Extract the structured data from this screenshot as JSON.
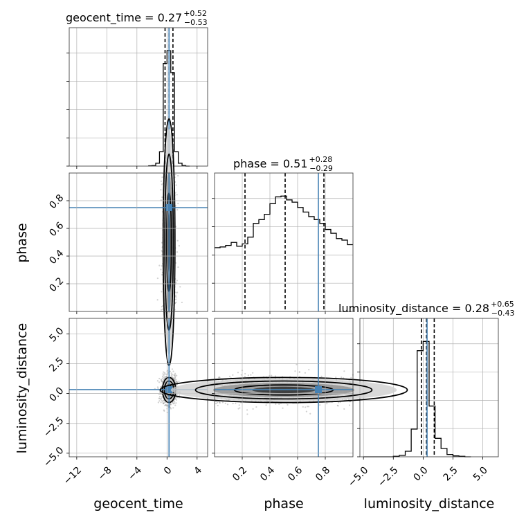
{
  "colors": {
    "truth": "#4682b4",
    "hist": "#000000",
    "grid": "#b0b0b0",
    "points": "#9a9a9a"
  },
  "chart_data": {
    "type": "corner",
    "parameters": [
      "geocent_time",
      "phase",
      "luminosity_distance"
    ],
    "titles": [
      {
        "param": "geocent_time",
        "text": "geocent_time = 0.27",
        "plus": "+0.52",
        "minus": "−0.53",
        "median": 0.27
      },
      {
        "param": "phase",
        "text": "phase = 0.51",
        "plus": "+0.28",
        "minus": "−0.29",
        "median": 0.51
      },
      {
        "param": "luminosity_distance",
        "text": "luminosity_distance = 0.28",
        "plus": "+0.65",
        "minus": "−0.43",
        "median": 0.28
      }
    ],
    "truths": {
      "geocent_time": 0.27,
      "phase": 0.75,
      "luminosity_distance": 0.33
    },
    "quantiles": {
      "geocent_time": [
        -0.26,
        0.27,
        0.79
      ],
      "phase": [
        0.22,
        0.51,
        0.79
      ],
      "luminosity_distance": [
        -0.15,
        0.28,
        0.93
      ]
    },
    "ranges": {
      "geocent_time": [
        -13,
        5.4
      ],
      "phase": [
        0.0,
        1.0
      ],
      "luminosity_distance": [
        -5.3,
        6.3
      ]
    },
    "ticks": {
      "geocent_time": {
        "values": [
          -12,
          -8,
          -4,
          0,
          4
        ],
        "labels": [
          "−12",
          "−8",
          "−4",
          "0",
          "4"
        ]
      },
      "phase": {
        "values": [
          0.2,
          0.4,
          0.6,
          0.8
        ],
        "labels": [
          "0.2",
          "0.4",
          "0.6",
          "0.8"
        ]
      },
      "luminosity_distance": {
        "values": [
          -5.0,
          -2.5,
          0.0,
          2.5,
          5.0
        ],
        "labels": [
          "−5.0",
          "−2.5",
          "0.0",
          "2.5",
          "5.0"
        ]
      }
    },
    "histograms": {
      "geocent_time": {
        "edges": [
          -2.5,
          -2.0,
          -1.5,
          -1.0,
          -0.5,
          0.0,
          0.5,
          1.0,
          1.5,
          2.0,
          2.5,
          3.0
        ],
        "counts": [
          0.5,
          1,
          5,
          25,
          178,
          200,
          162,
          25,
          5,
          1,
          0
        ]
      },
      "phase": {
        "edges": [
          0.0,
          0.04,
          0.08,
          0.12,
          0.16,
          0.2,
          0.24,
          0.28,
          0.32,
          0.36,
          0.4,
          0.44,
          0.48,
          0.52,
          0.56,
          0.6,
          0.64,
          0.68,
          0.72,
          0.76,
          0.8,
          0.84,
          0.88,
          0.92,
          0.96,
          1.0
        ],
        "counts": [
          420,
          425,
          435,
          455,
          430,
          445,
          490,
          580,
          605,
          640,
          710,
          755,
          760,
          735,
          720,
          685,
          655,
          625,
          605,
          580,
          540,
          515,
          480,
          470,
          440
        ]
      },
      "luminosity_distance": {
        "edges": [
          -5.0,
          -4.5,
          -4.0,
          -3.5,
          -3.0,
          -2.5,
          -2.0,
          -1.5,
          -1.0,
          -0.5,
          0.0,
          0.5,
          1.0,
          1.5,
          2.0,
          2.5,
          3.0,
          3.5,
          4.0
        ],
        "counts": [
          0,
          0,
          0,
          0,
          0,
          1,
          3,
          12,
          60,
          230,
          250,
          110,
          40,
          18,
          5,
          2,
          1,
          0
        ]
      }
    },
    "axis_labels": [
      "geocent_time",
      "phase",
      "luminosity_distance"
    ]
  }
}
